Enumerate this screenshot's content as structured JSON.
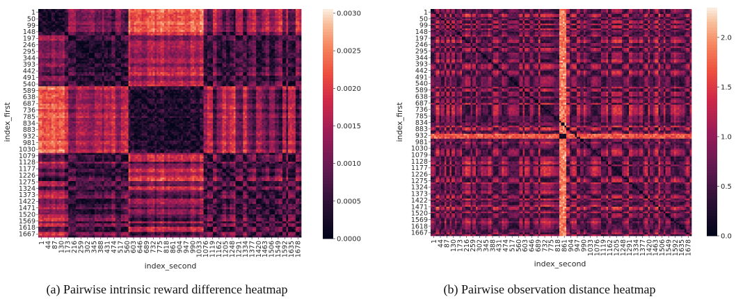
{
  "chart_data": [
    {
      "type": "heatmap",
      "caption": "(a) Pairwise intrinsic reward difference heatmap",
      "xlabel": "index_second",
      "ylabel": "index_first",
      "x_tick_labels": [
        "1",
        "44",
        "87",
        "130",
        "173",
        "216",
        "259",
        "302",
        "345",
        "388",
        "431",
        "474",
        "517",
        "560",
        "603",
        "646",
        "689",
        "732",
        "775",
        "818",
        "861",
        "904",
        "947",
        "990",
        "1033",
        "1076",
        "1119",
        "1162",
        "1205",
        "1248",
        "1291",
        "1334",
        "1377",
        "1420",
        "1463",
        "1506",
        "1549",
        "1592",
        "1635",
        "1678"
      ],
      "y_tick_labels": [
        "1",
        "50",
        "99",
        "148",
        "197",
        "246",
        "295",
        "344",
        "393",
        "442",
        "491",
        "540",
        "589",
        "638",
        "687",
        "736",
        "785",
        "834",
        "883",
        "932",
        "981",
        "1030",
        "1079",
        "1128",
        "1177",
        "1226",
        "1275",
        "1324",
        "1373",
        "1422",
        "1471",
        "1520",
        "1569",
        "1618",
        "1667"
      ],
      "colorbar": {
        "min": 0.0,
        "max": 0.003,
        "ticks": [
          "0.0000",
          "0.0005",
          "0.0010",
          "0.0015",
          "0.0020",
          "0.0025",
          "0.0030"
        ],
        "colormap": "rocket"
      }
    },
    {
      "type": "heatmap",
      "caption": "(b) Pairwise observation distance heatmap",
      "xlabel": "index_second",
      "ylabel": "index_first",
      "x_tick_labels": [
        "1",
        "44",
        "87",
        "130",
        "173",
        "216",
        "259",
        "302",
        "345",
        "388",
        "431",
        "474",
        "517",
        "560",
        "603",
        "646",
        "689",
        "732",
        "775",
        "818",
        "861",
        "904",
        "947",
        "990",
        "1033",
        "1076",
        "1119",
        "1162",
        "1205",
        "1248",
        "1291",
        "1334",
        "1377",
        "1420",
        "1463",
        "1506",
        "1549",
        "1592",
        "1635",
        "1678"
      ],
      "y_tick_labels": [
        "1",
        "50",
        "99",
        "148",
        "197",
        "246",
        "295",
        "344",
        "393",
        "442",
        "491",
        "540",
        "589",
        "638",
        "687",
        "736",
        "785",
        "834",
        "883",
        "932",
        "981",
        "1030",
        "1079",
        "1128",
        "1177",
        "1226",
        "1275",
        "1324",
        "1373",
        "1422",
        "1471",
        "1520",
        "1569",
        "1618",
        "1667"
      ],
      "colorbar": {
        "min": 0.0,
        "max": 2.3,
        "ticks": [
          "0.0",
          "0.5",
          "1.0",
          "1.5",
          "2.0"
        ],
        "colormap": "rocket"
      }
    }
  ]
}
